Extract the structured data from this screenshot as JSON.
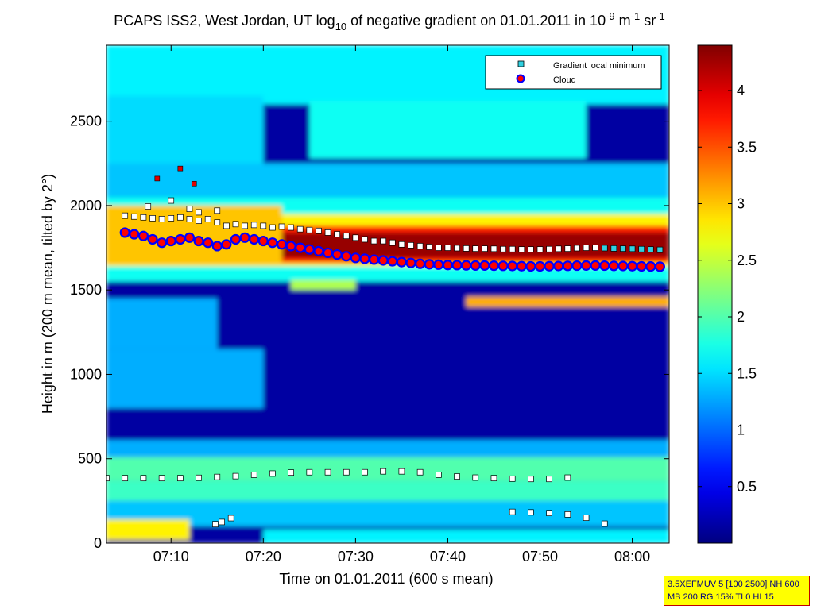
{
  "chart_data": {
    "type": "heatmap",
    "title_parts": {
      "a": "PCAPS ISS2, West Jordan, UT log",
      "b": "10",
      "c": " of negative gradient on 01.01.2011 in 10",
      "d": "-9",
      "e": " m",
      "f": "-1",
      "g": " sr",
      "h": "-1"
    },
    "xlabel": "Time on 01.01.2011 (600 s mean)",
    "ylabel": "Height in m (200 m mean, tilted by 2°)",
    "x_range_min": [
      3,
      64
    ],
    "x_ticks": [
      10,
      20,
      30,
      40,
      50,
      60
    ],
    "x_tick_labels": [
      "07:10",
      "07:20",
      "07:30",
      "07:40",
      "07:50",
      "08:00"
    ],
    "ylim": [
      0,
      2950
    ],
    "y_ticks": [
      0,
      500,
      1000,
      1500,
      2000,
      2500
    ],
    "y_tick_labels": [
      "0",
      "500",
      "1000",
      "1500",
      "2000",
      "2500"
    ],
    "colorbar": {
      "range": [
        0,
        4.4
      ],
      "ticks": [
        0.5,
        1,
        1.5,
        2,
        2.5,
        3,
        3.5,
        4
      ],
      "tick_labels": [
        "0.5",
        "1",
        "1.5",
        "2",
        "2.5",
        "3",
        "3.5",
        "4"
      ]
    },
    "legend": {
      "position": "top-right",
      "entries": [
        "Gradient local minimum",
        "Cloud"
      ]
    },
    "layers": [
      {
        "t0": 3,
        "t1": 64,
        "h0": 0,
        "h1": 2950,
        "v": 0.15
      },
      {
        "t0": 3,
        "t1": 64,
        "h0": 2600,
        "h1": 2950,
        "v": 1.6
      },
      {
        "t0": 3,
        "t1": 20,
        "h0": 2150,
        "h1": 2650,
        "v": 1.5
      },
      {
        "t0": 25,
        "t1": 55,
        "h0": 2280,
        "h1": 2620,
        "v": 1.7
      },
      {
        "t0": 3,
        "t1": 64,
        "h0": 1550,
        "h1": 2050,
        "v": 1.7
      },
      {
        "t0": 3,
        "t1": 64,
        "h0": 2050,
        "h1": 2250,
        "v": 1.4
      },
      {
        "t0": 3,
        "t1": 64,
        "h0": 1640,
        "h1": 1950,
        "v": 2.8
      },
      {
        "t0": 8,
        "t1": 64,
        "h0": 1660,
        "h1": 1880,
        "v": 3.7
      },
      {
        "t0": 18,
        "t1": 64,
        "h0": 1690,
        "h1": 1840,
        "v": 4.3
      },
      {
        "t0": 3,
        "t1": 22,
        "h0": 1650,
        "h1": 2000,
        "v": 3.0
      },
      {
        "t0": 3,
        "t1": 15,
        "h0": 1150,
        "h1": 1450,
        "v": 1.3
      },
      {
        "t0": 3,
        "t1": 20,
        "h0": 800,
        "h1": 1150,
        "v": 1.3
      },
      {
        "t0": 3,
        "t1": 64,
        "h0": 510,
        "h1": 610,
        "v": 1.3
      },
      {
        "t0": 3,
        "t1": 64,
        "h0": 370,
        "h1": 510,
        "v": 2.0
      },
      {
        "t0": 3,
        "t1": 64,
        "h0": 250,
        "h1": 370,
        "v": 1.9
      },
      {
        "t0": 3,
        "t1": 64,
        "h0": 100,
        "h1": 250,
        "v": 1.4
      },
      {
        "t0": 3,
        "t1": 12,
        "h0": 20,
        "h1": 140,
        "v": 2.8
      },
      {
        "t0": 20,
        "t1": 64,
        "h0": 0,
        "h1": 80,
        "v": 1.6
      },
      {
        "t0": 23,
        "t1": 30,
        "h0": 1500,
        "h1": 1560,
        "v": 2.4
      },
      {
        "t0": 42,
        "t1": 64,
        "h0": 1400,
        "h1": 1460,
        "v": 3.1
      }
    ],
    "series": [
      {
        "name": "Gradient local minimum",
        "points": [
          [
            5,
            1940
          ],
          [
            6,
            1935
          ],
          [
            7,
            1930
          ],
          [
            8,
            1925
          ],
          [
            9,
            1920
          ],
          [
            10,
            1925
          ],
          [
            11,
            1930
          ],
          [
            12,
            1920
          ],
          [
            13,
            1910
          ],
          [
            14,
            1920
          ],
          [
            15,
            1900
          ],
          [
            16,
            1880
          ],
          [
            17,
            1890
          ],
          [
            18,
            1880
          ],
          [
            19,
            1885
          ],
          [
            20,
            1880
          ],
          [
            21,
            1870
          ],
          [
            22,
            1875
          ],
          [
            23,
            1870
          ],
          [
            24,
            1860
          ],
          [
            25,
            1855
          ],
          [
            26,
            1850
          ],
          [
            27,
            1840
          ],
          [
            28,
            1830
          ],
          [
            29,
            1820
          ],
          [
            30,
            1810
          ],
          [
            31,
            1800
          ],
          [
            32,
            1790
          ],
          [
            33,
            1790
          ],
          [
            34,
            1780
          ],
          [
            35,
            1770
          ],
          [
            36,
            1765
          ],
          [
            37,
            1760
          ],
          [
            38,
            1755
          ],
          [
            39,
            1750
          ],
          [
            40,
            1750
          ],
          [
            41,
            1748
          ],
          [
            42,
            1746
          ],
          [
            43,
            1745
          ],
          [
            44,
            1745
          ],
          [
            45,
            1744
          ],
          [
            46,
            1742
          ],
          [
            47,
            1742
          ],
          [
            48,
            1740
          ],
          [
            49,
            1740
          ],
          [
            50,
            1740
          ],
          [
            51,
            1742
          ],
          [
            52,
            1744
          ],
          [
            53,
            1745
          ],
          [
            54,
            1748
          ],
          [
            55,
            1750
          ],
          [
            56,
            1750
          ],
          [
            57,
            1748
          ],
          [
            58,
            1746
          ],
          [
            59,
            1745
          ],
          [
            60,
            1744
          ],
          [
            61,
            1742
          ],
          [
            62,
            1740
          ],
          [
            63,
            1738
          ],
          [
            3,
            385
          ],
          [
            5,
            385
          ],
          [
            7,
            385
          ],
          [
            9,
            385
          ],
          [
            11,
            385
          ],
          [
            13,
            387
          ],
          [
            15,
            392
          ],
          [
            17,
            397
          ],
          [
            19,
            405
          ],
          [
            21,
            412
          ],
          [
            23,
            418
          ],
          [
            25,
            420
          ],
          [
            27,
            420
          ],
          [
            29,
            420
          ],
          [
            31,
            420
          ],
          [
            33,
            425
          ],
          [
            35,
            425
          ],
          [
            37,
            420
          ],
          [
            39,
            405
          ],
          [
            41,
            395
          ],
          [
            43,
            388
          ],
          [
            45,
            385
          ],
          [
            47,
            382
          ],
          [
            49,
            380
          ],
          [
            51,
            380
          ],
          [
            53,
            388
          ],
          [
            47,
            185
          ],
          [
            49,
            182
          ],
          [
            51,
            178
          ],
          [
            53,
            170
          ],
          [
            55,
            150
          ],
          [
            57,
            115
          ],
          [
            14.8,
            112
          ],
          [
            15.5,
            125
          ],
          [
            16.5,
            148
          ],
          [
            7.5,
            1995
          ],
          [
            10,
            2030
          ],
          [
            12,
            1980
          ],
          [
            13,
            1960
          ],
          [
            15,
            1970
          ]
        ]
      },
      {
        "name": "Cloud",
        "points": [
          [
            5,
            1840
          ],
          [
            6,
            1830
          ],
          [
            7,
            1820
          ],
          [
            8,
            1800
          ],
          [
            9,
            1780
          ],
          [
            10,
            1790
          ],
          [
            11,
            1800
          ],
          [
            12,
            1810
          ],
          [
            13,
            1790
          ],
          [
            14,
            1780
          ],
          [
            15,
            1760
          ],
          [
            16,
            1770
          ],
          [
            17,
            1800
          ],
          [
            18,
            1810
          ],
          [
            19,
            1800
          ],
          [
            20,
            1790
          ],
          [
            21,
            1780
          ],
          [
            22,
            1770
          ],
          [
            23,
            1760
          ],
          [
            24,
            1750
          ],
          [
            25,
            1740
          ],
          [
            26,
            1730
          ],
          [
            27,
            1720
          ],
          [
            28,
            1710
          ],
          [
            29,
            1700
          ],
          [
            30,
            1690
          ],
          [
            31,
            1685
          ],
          [
            32,
            1680
          ],
          [
            33,
            1675
          ],
          [
            34,
            1670
          ],
          [
            35,
            1665
          ],
          [
            36,
            1660
          ],
          [
            37,
            1655
          ],
          [
            38,
            1652
          ],
          [
            39,
            1650
          ],
          [
            40,
            1648
          ],
          [
            41,
            1647
          ],
          [
            42,
            1646
          ],
          [
            43,
            1645
          ],
          [
            44,
            1645
          ],
          [
            45,
            1644
          ],
          [
            46,
            1643
          ],
          [
            47,
            1642
          ],
          [
            48,
            1641
          ],
          [
            49,
            1640
          ],
          [
            50,
            1640
          ],
          [
            51,
            1641
          ],
          [
            52,
            1642
          ],
          [
            53,
            1643
          ],
          [
            54,
            1644
          ],
          [
            55,
            1645
          ],
          [
            56,
            1645
          ],
          [
            57,
            1644
          ],
          [
            58,
            1643
          ],
          [
            59,
            1642
          ],
          [
            60,
            1641
          ],
          [
            61,
            1640
          ],
          [
            62,
            1639
          ],
          [
            63,
            1638
          ]
        ]
      }
    ],
    "red_markers": [
      [
        8.5,
        2160
      ],
      [
        11,
        2220
      ],
      [
        12.5,
        2130
      ]
    ]
  },
  "footer_note": {
    "line1": "3.5XEFMUV 5 [100 2500] NH 600",
    "line2": "MB 200 RG 15% TI 0 HI 15"
  }
}
